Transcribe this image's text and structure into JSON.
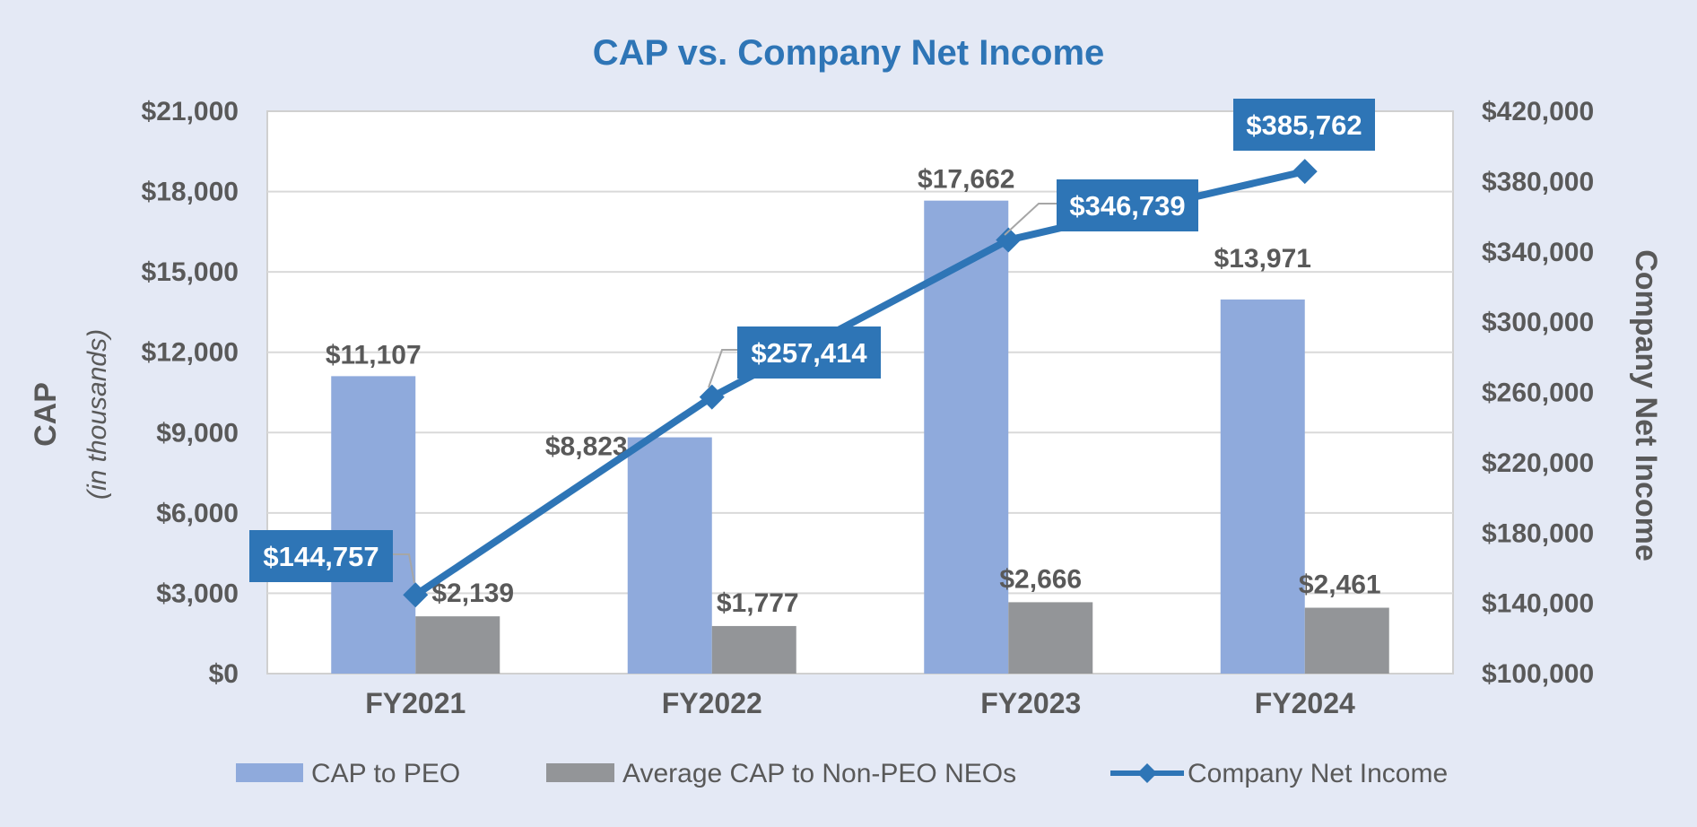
{
  "chart_data": {
    "type": "bar",
    "title": "CAP vs. Company Net Income",
    "categories": [
      "FY2021",
      "FY2022",
      "FY2023",
      "FY2024"
    ],
    "y_left": {
      "label": "CAP",
      "sublabel": "(in thousands)",
      "ylim": [
        0,
        21000
      ],
      "ticks": [
        0,
        3000,
        6000,
        9000,
        12000,
        15000,
        18000,
        21000
      ],
      "tick_labels": [
        "$0",
        "$3,000",
        "$6,000",
        "$9,000",
        "$12,000",
        "$15,000",
        "$18,000",
        "$21,000"
      ]
    },
    "y_right": {
      "label": "Company Net Income",
      "ylim": [
        100000,
        420000
      ],
      "ticks": [
        100000,
        140000,
        180000,
        220000,
        260000,
        300000,
        340000,
        380000,
        420000
      ],
      "tick_labels": [
        "$100,000",
        "$140,000",
        "$180,000",
        "$220,000",
        "$260,000",
        "$300,000",
        "$340,000",
        "$380,000",
        "$420,000"
      ]
    },
    "series": [
      {
        "name": "CAP to PEO",
        "type": "bar",
        "axis": "left",
        "color": "#8faadc",
        "values": [
          11107,
          8823,
          17662,
          13971
        ],
        "labels": [
          "$11,107",
          "$8,823",
          "$17,662",
          "$13,971"
        ]
      },
      {
        "name": "Average CAP to Non-PEO NEOs",
        "type": "bar",
        "axis": "left",
        "color": "#939598",
        "values": [
          2139,
          1777,
          2666,
          2461
        ],
        "labels": [
          "$2,139",
          "$1,777",
          "$2,666",
          "$2,461"
        ]
      },
      {
        "name": "Company Net Income",
        "type": "line",
        "axis": "right",
        "color": "#2e75b6",
        "values": [
          144757,
          257414,
          346739,
          385762
        ],
        "labels": [
          "$144,757",
          "$257,414",
          "$346,739",
          "$385,762"
        ]
      }
    ],
    "grid": true,
    "legend": "bottom"
  }
}
